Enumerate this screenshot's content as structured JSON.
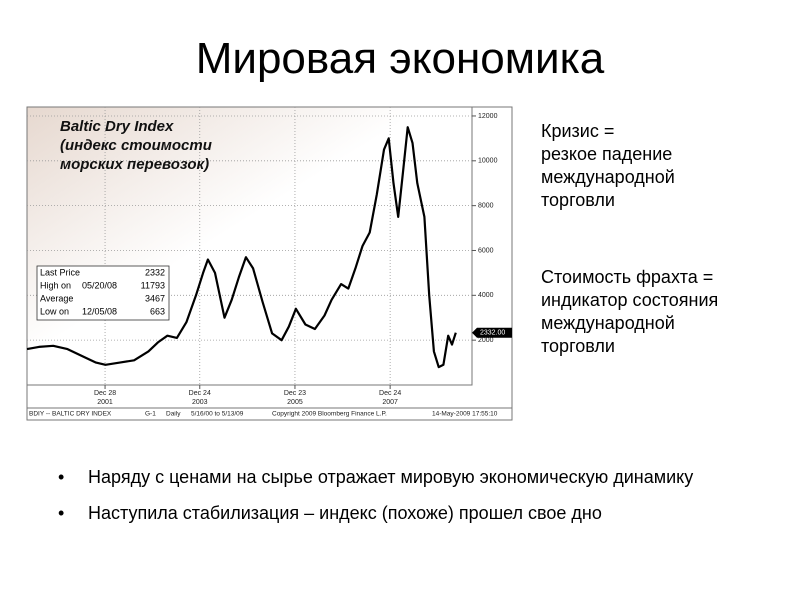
{
  "title": "Мировая экономика",
  "notes": [
    {
      "lines": [
        "Кризис =",
        "резкое падение",
        "международной",
        "торговли"
      ]
    },
    {
      "lines": [
        "Стоимость фрахта =",
        "индикатор состояния",
        "международной",
        "торговли"
      ]
    }
  ],
  "bullets": [
    "Наряду с ценами на сырье отражает мировую экономическую динамику",
    "Наступила стабилизация – индекс (похоже) прошел свое дно"
  ],
  "chart_data": {
    "type": "line",
    "title_lines": [
      "Baltic Dry Index",
      "(индекс стоимости",
      "морских перевозок)"
    ],
    "color": "#000000",
    "x": [
      2000.35,
      2000.6,
      2000.9,
      2001.2,
      2001.5,
      2001.8,
      2002.0,
      2002.3,
      2002.6,
      2002.9,
      2003.1,
      2003.3,
      2003.5,
      2003.7,
      2003.9,
      2004.05,
      2004.15,
      2004.3,
      2004.5,
      2004.65,
      2004.8,
      2004.95,
      2005.1,
      2005.3,
      2005.5,
      2005.7,
      2005.85,
      2006.0,
      2006.2,
      2006.4,
      2006.6,
      2006.75,
      2006.95,
      2007.1,
      2007.25,
      2007.4,
      2007.55,
      2007.7,
      2007.85,
      2007.95,
      2008.05,
      2008.15,
      2008.25,
      2008.35,
      2008.45,
      2008.55,
      2008.7,
      2008.8,
      2008.9,
      2009.0,
      2009.1,
      2009.2,
      2009.28,
      2009.36
    ],
    "values": [
      1600,
      1700,
      1750,
      1600,
      1300,
      1000,
      900,
      1000,
      1100,
      1500,
      1900,
      2200,
      2100,
      2800,
      4000,
      5000,
      5600,
      5000,
      3000,
      3800,
      4800,
      5700,
      5200,
      3700,
      2300,
      2000,
      2600,
      3400,
      2700,
      2500,
      3100,
      3800,
      4500,
      4300,
      5200,
      6200,
      6800,
      8500,
      10500,
      11000,
      9000,
      7500,
      9500,
      11500,
      10800,
      9000,
      7500,
      4000,
      1500,
      800,
      900,
      2200,
      1800,
      2332
    ],
    "xlim": [
      2000.35,
      2009.7
    ],
    "ylim": [
      0,
      12400
    ],
    "xticks": [
      {
        "value": 2001.99,
        "label": "Dec 28",
        "year": "2001"
      },
      {
        "value": 2003.98,
        "label": "Dec 24",
        "year": "2003"
      },
      {
        "value": 2005.98,
        "label": "Dec 23",
        "year": "2005"
      },
      {
        "value": 2007.98,
        "label": "Dec 24",
        "year": "2007"
      }
    ],
    "yticks": [
      2000,
      4000,
      6000,
      8000,
      10000,
      12000
    ],
    "grid": true,
    "price_marker": {
      "value": 2332,
      "label": "2332.00"
    },
    "stats": [
      {
        "label": "Last Price",
        "value": 2332
      },
      {
        "label": "High on",
        "date": "05/20/08",
        "value": 11793
      },
      {
        "label": "Average",
        "value": 3467
      },
      {
        "label": "Low on",
        "date": "12/05/08",
        "value": 663
      }
    ],
    "footer": [
      "BDIY -- BALTIC DRY INDEX",
      "G-1",
      "Daily",
      "5/16/00 to 5/13/09",
      "Copyright 2009 Bloomberg Finance L.P.",
      "14-May-2009 17:55:10"
    ]
  }
}
